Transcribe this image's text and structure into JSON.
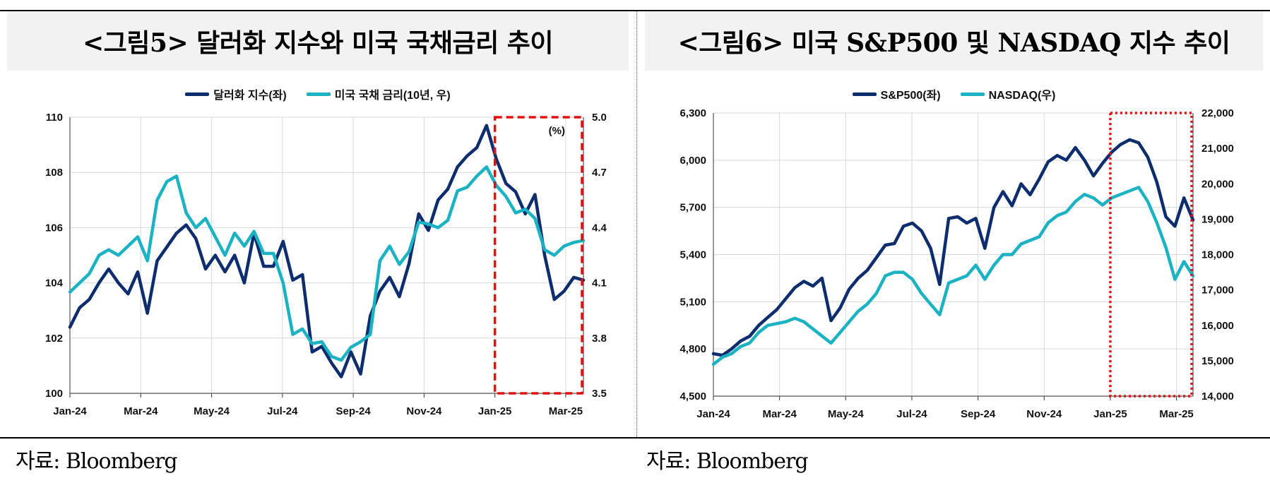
{
  "chart_data": [
    {
      "type": "line",
      "title": "<그림5> 달러화 지수와 미국 국채금리 추이",
      "x_labels": [
        "Jan-24",
        "Mar-24",
        "May-24",
        "Jul-24",
        "Sep-24",
        "Nov-24",
        "Jan-25",
        "Mar-25"
      ],
      "y_left": {
        "lim": [
          100,
          110
        ],
        "ticks": [
          "100",
          "102",
          "104",
          "106",
          "108",
          "110"
        ]
      },
      "y_right": {
        "lim": [
          3.5,
          5.0
        ],
        "ticks": [
          "3.5",
          "3.8",
          "4.1",
          "4.4",
          "4.7",
          "5.0"
        ],
        "unit": "(%)"
      },
      "series": [
        {
          "name": "달러화 지수(좌)",
          "axis": "left",
          "color": "#0d2d6e",
          "values": [
            102.4,
            103.1,
            103.4,
            104.0,
            104.5,
            104.0,
            103.6,
            104.4,
            102.9,
            104.8,
            105.3,
            105.8,
            106.1,
            105.6,
            104.5,
            105.0,
            104.4,
            105.0,
            104.0,
            105.8,
            104.6,
            104.6,
            105.5,
            104.1,
            104.3,
            101.5,
            101.7,
            101.1,
            100.6,
            101.5,
            100.7,
            102.8,
            103.7,
            104.2,
            103.5,
            104.7,
            106.5,
            105.9,
            107.0,
            107.4,
            108.2,
            108.6,
            108.9,
            109.7,
            108.5,
            107.6,
            107.3,
            106.5,
            107.2,
            105.0,
            103.4,
            103.7,
            104.2,
            104.1
          ]
        },
        {
          "name": "미국 국채 금리(10년, 우)",
          "axis": "right",
          "color": "#1bb3c4",
          "values": [
            4.05,
            4.1,
            4.15,
            4.25,
            4.28,
            4.25,
            4.3,
            4.35,
            4.22,
            4.55,
            4.65,
            4.68,
            4.48,
            4.4,
            4.45,
            4.35,
            4.25,
            4.37,
            4.3,
            4.38,
            4.26,
            4.26,
            4.1,
            3.82,
            3.85,
            3.77,
            3.78,
            3.7,
            3.68,
            3.75,
            3.78,
            3.82,
            4.22,
            4.3,
            4.2,
            4.27,
            4.43,
            4.42,
            4.4,
            4.44,
            4.6,
            4.62,
            4.68,
            4.73,
            4.63,
            4.57,
            4.48,
            4.5,
            4.45,
            4.28,
            4.25,
            4.3,
            4.32,
            4.33
          ]
        }
      ],
      "highlight_from_label": "Jan-25"
    },
    {
      "type": "line",
      "title": "<그림6> 미국 S&P500 및 NASDAQ 지수 추이",
      "x_labels": [
        "Jan-24",
        "Mar-24",
        "May-24",
        "Jul-24",
        "Sep-24",
        "Nov-24",
        "Jan-25",
        "Mar-25"
      ],
      "y_left": {
        "lim": [
          4500,
          6300
        ],
        "ticks": [
          "4,500",
          "4,800",
          "5,100",
          "5,400",
          "5,700",
          "6,000",
          "6,300"
        ]
      },
      "y_right": {
        "lim": [
          14000,
          22000
        ],
        "ticks": [
          "14,000",
          "15,000",
          "16,000",
          "17,000",
          "18,000",
          "19,000",
          "20,000",
          "21,000",
          "22,000"
        ]
      },
      "series": [
        {
          "name": "S&P500(좌)",
          "axis": "left",
          "color": "#0d2d6e",
          "values": [
            4770,
            4760,
            4800,
            4850,
            4880,
            4950,
            5000,
            5050,
            5120,
            5190,
            5230,
            5200,
            5250,
            4980,
            5060,
            5180,
            5250,
            5300,
            5380,
            5460,
            5470,
            5580,
            5600,
            5550,
            5440,
            5210,
            5630,
            5640,
            5600,
            5630,
            5440,
            5700,
            5800,
            5710,
            5850,
            5780,
            5880,
            5990,
            6030,
            6000,
            6080,
            6000,
            5900,
            5980,
            6050,
            6100,
            6130,
            6110,
            6020,
            5860,
            5640,
            5580,
            5760,
            5620
          ]
        },
        {
          "name": "NASDAQ(우)",
          "axis": "right",
          "color": "#1bb3c4",
          "values": [
            14900,
            15100,
            15200,
            15400,
            15500,
            15800,
            16000,
            16050,
            16100,
            16200,
            16100,
            15900,
            15700,
            15500,
            15800,
            16100,
            16400,
            16600,
            16900,
            17400,
            17500,
            17500,
            17300,
            16900,
            16600,
            16300,
            17200,
            17300,
            17400,
            17700,
            17300,
            17700,
            18000,
            18000,
            18300,
            18400,
            18500,
            18900,
            19100,
            19200,
            19500,
            19700,
            19600,
            19400,
            19600,
            19700,
            19800,
            19900,
            19500,
            18900,
            18200,
            17300,
            17800,
            17400
          ]
        }
      ],
      "highlight_from_label": "Jan-25"
    }
  ],
  "legend_left": [
    "달러화 지수(좌)",
    "미국 국채 금리(10년, 우)"
  ],
  "legend_right": [
    "S&P500(좌)",
    "NASDAQ(우)"
  ],
  "source_left": "자료: Bloomberg",
  "source_right": "자료: Bloomberg",
  "colors": {
    "navy": "#0d2d6e",
    "teal": "#1bb3c4",
    "highlight": "#e01010",
    "title_bg": "#f2f2f2",
    "grid": "#d9d9d9"
  }
}
